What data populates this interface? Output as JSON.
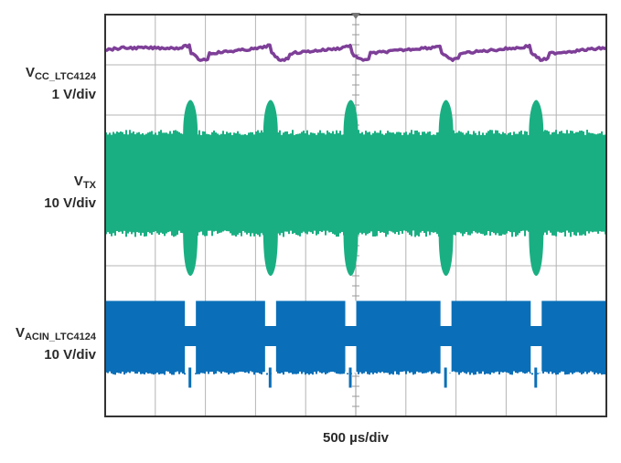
{
  "chart_data": {
    "type": "line",
    "title": "",
    "xlabel": "500 µs/div",
    "grid": true,
    "divisions": {
      "x": 10,
      "y": 8
    },
    "series": [
      {
        "label_main": "V",
        "label_sub": "CC_LTC4124",
        "scale": "1 V/div",
        "color": "#7e3f98",
        "style": "trace",
        "dip_x_div": [
          1.7,
          3.3,
          4.9,
          6.7,
          8.5
        ],
        "level_div": 7.3
      },
      {
        "label_main": "V",
        "label_sub": "TX",
        "scale": "10 V/div",
        "color": "#1aaf82",
        "style": "band",
        "band_top_div": 5.6,
        "band_bottom_div": 3.7,
        "burst_x_div": [
          1.7,
          3.3,
          4.9,
          6.8,
          8.6
        ],
        "burst_top_div": 6.3,
        "burst_bottom_div": 2.8
      },
      {
        "label_main": "V",
        "label_sub": "ACIN_LTC4124",
        "scale": "10 V/div",
        "color": "#0a6fb8",
        "style": "band",
        "band_top_div": 2.3,
        "band_bottom_div": 0.9,
        "gap_x_div": [
          1.7,
          3.3,
          4.9,
          6.8,
          8.6
        ],
        "gap_top_div": 1.8,
        "gap_bottom_div": 1.4
      }
    ]
  }
}
